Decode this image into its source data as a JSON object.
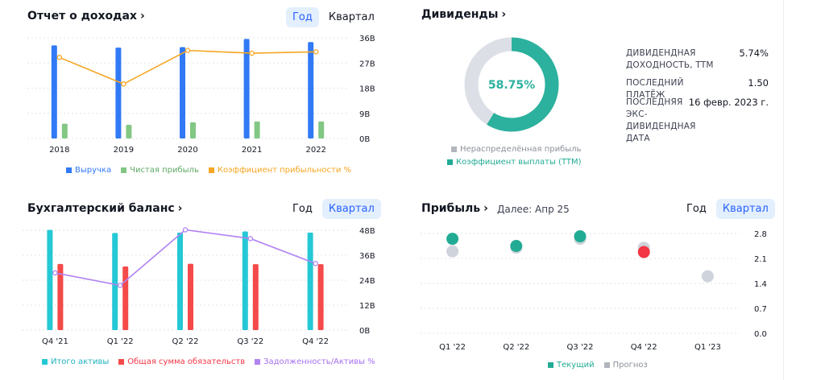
{
  "income": {
    "title": "Отчет о доходах",
    "toggle": {
      "year": "Год",
      "quarter": "Квартал",
      "active": "year"
    },
    "legend": [
      "Выручка",
      "Чистая прибыль",
      "Коэффициент прибыльности %"
    ]
  },
  "dividends": {
    "title": "Дивиденды",
    "center_value": "58.75%",
    "legend": [
      "Нераспределённая прибыль",
      "Коэффициент выплаты (TTM)"
    ],
    "stats": [
      {
        "label": "ДИВИДЕНДНАЯ ДОХОДНОСТЬ, TTM",
        "value": "5.74%"
      },
      {
        "label": "ПОСЛЕДНИЙ ПЛАТЁЖ",
        "value": "1.50"
      },
      {
        "label": "ПОСЛЕДНЯЯ ЭКС-ДИВИДЕНДНАЯ ДАТА",
        "value": "16 февр. 2023 г."
      }
    ]
  },
  "balance": {
    "title": "Бухгалтерский баланс",
    "toggle": {
      "year": "Год",
      "quarter": "Квартал",
      "active": "quarter"
    },
    "legend": [
      "Итого активы",
      "Общая сумма обязательств",
      "Задолженность/Активы %"
    ]
  },
  "earnings": {
    "title": "Прибыль",
    "next": "Далее: Апр 25",
    "toggle": {
      "year": "Год",
      "quarter": "Квартал",
      "active": "quarter"
    },
    "legend": [
      "Текущий",
      "Прогноз"
    ]
  },
  "colors": {
    "blue": "#3179f5",
    "green": "#82c784",
    "orange": "#f5a623",
    "teal": "#2bb19e",
    "grey": "#dcdfe6",
    "cyan": "#25c8d5",
    "red": "#f44a4a",
    "purple": "#b283f2",
    "actual": "#22ab94",
    "estimate": "#cfd3dc",
    "miss": "#f23645"
  },
  "chart_data": [
    {
      "type": "bar",
      "categories": [
        "2018",
        "2019",
        "2020",
        "2021",
        "2022"
      ],
      "series": [
        {
          "name": "Выручка",
          "values": [
            33.3,
            32.5,
            32.7,
            35.6,
            34.5
          ]
        },
        {
          "name": "Чистая прибыль",
          "values": [
            5.3,
            4.9,
            5.8,
            6.1,
            6.1
          ]
        },
        {
          "name": "Коэффициент прибыльности %",
          "values": [
            29.0,
            19.5,
            31.5,
            30.5,
            31.0
          ]
        }
      ],
      "yticks": [
        "36B",
        "27B",
        "18B",
        "9B",
        "0B"
      ],
      "ylim": [
        0,
        36
      ]
    },
    {
      "type": "pie",
      "slices": [
        {
          "name": "Коэффициент выплаты (TTM)",
          "value": 58.75
        },
        {
          "name": "Нераспределённая прибыль",
          "value": 41.25
        }
      ]
    },
    {
      "type": "bar",
      "categories": [
        "Q4 '21",
        "Q1 '22",
        "Q2 '22",
        "Q3 '22",
        "Q4 '22"
      ],
      "series": [
        {
          "name": "Итого активы",
          "values": [
            48.2,
            46.7,
            46.9,
            47.4,
            46.9
          ]
        },
        {
          "name": "Общая сумма обязательств",
          "values": [
            31.8,
            30.6,
            31.9,
            31.7,
            31.7
          ]
        },
        {
          "name": "Задолженность/Активы %",
          "values": [
            27.5,
            21.5,
            48.2,
            44.0,
            32.0
          ]
        }
      ],
      "yticks": [
        "48B",
        "36B",
        "24B",
        "12B",
        "0B"
      ],
      "ylim": [
        0,
        48
      ]
    },
    {
      "type": "scatter",
      "categories": [
        "Q1 '22",
        "Q2 '22",
        "Q3 '22",
        "Q4 '22",
        "Q1 '23"
      ],
      "series": [
        {
          "name": "Текущий",
          "values": [
            2.65,
            2.45,
            2.72,
            2.28,
            null
          ]
        },
        {
          "name": "Прогноз",
          "values": [
            2.3,
            2.4,
            2.65,
            2.4,
            1.6
          ]
        }
      ],
      "yticks": [
        "2.8",
        "2.1",
        "1.4",
        "0.7",
        "0.0"
      ],
      "ylim": [
        0,
        2.8
      ]
    }
  ]
}
